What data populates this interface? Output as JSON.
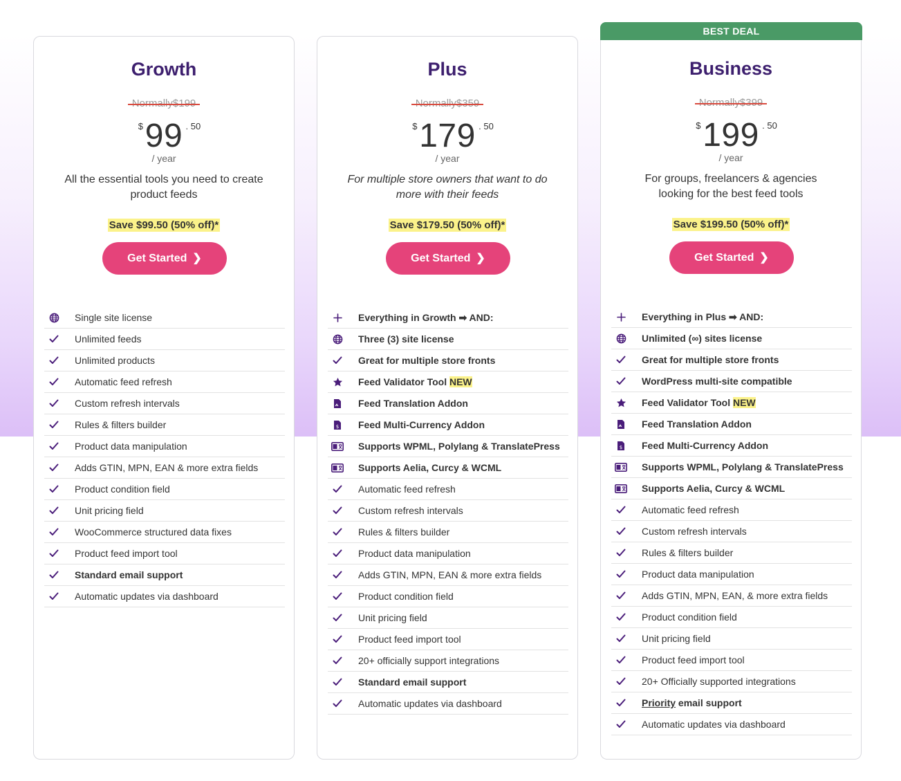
{
  "plans": [
    {
      "name": "Growth",
      "normal_price": "Normally$199",
      "currency": "$",
      "amount": "99",
      "cents": ". 50",
      "period": "/ year",
      "description": "All the essential tools you need to create product feeds",
      "savings": "Save $99.50 (50% off)*",
      "cta": "Get Started",
      "features": [
        {
          "icon": "globe-icon",
          "text": "Single site license",
          "bold": false
        },
        {
          "icon": "check-icon",
          "text": "Unlimited feeds",
          "bold": false
        },
        {
          "icon": "check-icon",
          "text": "Unlimited products",
          "bold": false
        },
        {
          "icon": "check-icon",
          "text": "Automatic feed refresh",
          "bold": false
        },
        {
          "icon": "check-icon",
          "text": "Custom refresh intervals",
          "bold": false
        },
        {
          "icon": "check-icon",
          "text": "Rules & filters builder",
          "bold": false
        },
        {
          "icon": "check-icon",
          "text": "Product data manipulation",
          "bold": false
        },
        {
          "icon": "check-icon",
          "text": "Adds GTIN, MPN, EAN & more extra fields",
          "bold": false
        },
        {
          "icon": "check-icon",
          "text": "Product condition field",
          "bold": false
        },
        {
          "icon": "check-icon",
          "text": "Unit pricing field",
          "bold": false
        },
        {
          "icon": "check-icon",
          "text": "WooCommerce structured data fixes",
          "bold": false
        },
        {
          "icon": "check-icon",
          "text": "Product feed import tool",
          "bold": false
        },
        {
          "icon": "check-icon",
          "text": "Standard email support",
          "bold": true
        },
        {
          "icon": "check-icon",
          "text": "Automatic updates via dashboard",
          "bold": false
        }
      ]
    },
    {
      "name": "Plus",
      "normal_price": "Normally$359",
      "currency": "$",
      "amount": "179",
      "cents": ". 50",
      "period": "/ year",
      "description": "For multiple store owners that want to do more with their feeds",
      "savings": "Save $179.50 (50% off)*",
      "cta": "Get Started",
      "features": [
        {
          "icon": "plus-icon",
          "text": "Everything in Growth ➡ AND:",
          "bold": true
        },
        {
          "icon": "globe-icon",
          "text": "Three (3) site license",
          "bold": true
        },
        {
          "icon": "check-icon",
          "text": "Great for multiple store fronts",
          "bold": true
        },
        {
          "icon": "star-icon",
          "text": "Feed Validator Tool ",
          "bold": true,
          "tag": "NEW"
        },
        {
          "icon": "file-translate-icon",
          "text": "Feed Translation Addon",
          "bold": true
        },
        {
          "icon": "file-currency-icon",
          "text": "Feed Multi-Currency Addon",
          "bold": true
        },
        {
          "icon": "language-card-icon",
          "text": "Supports WPML, Polylang & TranslatePress",
          "bold": true
        },
        {
          "icon": "language-card-icon",
          "text": "Supports Aelia, Curcy & WCML",
          "bold": true
        },
        {
          "icon": "check-icon",
          "text": "Automatic feed refresh",
          "bold": false
        },
        {
          "icon": "check-icon",
          "text": "Custom refresh intervals",
          "bold": false
        },
        {
          "icon": "check-icon",
          "text": "Rules & filters builder",
          "bold": false
        },
        {
          "icon": "check-icon",
          "text": "Product data manipulation",
          "bold": false
        },
        {
          "icon": "check-icon",
          "text": "Adds GTIN, MPN, EAN & more extra fields",
          "bold": false
        },
        {
          "icon": "check-icon",
          "text": "Product condition field",
          "bold": false
        },
        {
          "icon": "check-icon",
          "text": "Unit pricing field",
          "bold": false
        },
        {
          "icon": "check-icon",
          "text": "Product feed import tool",
          "bold": false
        },
        {
          "icon": "check-icon",
          "text": "20+ officially support integrations",
          "bold": false
        },
        {
          "icon": "check-icon",
          "text": "Standard email support",
          "bold": true
        },
        {
          "icon": "check-icon",
          "text": "Automatic updates via dashboard",
          "bold": false
        }
      ]
    },
    {
      "name": "Business",
      "badge": "BEST DEAL",
      "normal_price": "Normally$399",
      "currency": "$",
      "amount": "199",
      "cents": ". 50",
      "period": "/ year",
      "description": "For groups, freelancers & agencies looking for the best feed tools",
      "savings": "Save $199.50 (50% off)*",
      "cta": "Get Started",
      "features": [
        {
          "icon": "plus-icon",
          "text": "Everything in Plus ➡ AND:",
          "bold": true
        },
        {
          "icon": "globe-icon",
          "text": "Unlimited (∞) sites license",
          "bold": true
        },
        {
          "icon": "check-icon",
          "text": "Great for multiple store fronts",
          "bold": true
        },
        {
          "icon": "check-icon",
          "text": "WordPress multi-site compatible",
          "bold": true
        },
        {
          "icon": "star-icon",
          "text": "Feed Validator Tool ",
          "bold": true,
          "tag": "NEW"
        },
        {
          "icon": "file-translate-icon",
          "text": "Feed Translation Addon",
          "bold": true
        },
        {
          "icon": "file-currency-icon",
          "text": "Feed Multi-Currency Addon",
          "bold": true
        },
        {
          "icon": "language-card-icon",
          "text": "Supports WPML, Polylang & TranslatePress",
          "bold": true
        },
        {
          "icon": "language-card-icon",
          "text": "Supports Aelia, Curcy & WCML",
          "bold": true
        },
        {
          "icon": "check-icon",
          "text": "Automatic feed refresh",
          "bold": false
        },
        {
          "icon": "check-icon",
          "text": "Custom refresh intervals",
          "bold": false
        },
        {
          "icon": "check-icon",
          "text": "Rules & filters builder",
          "bold": false
        },
        {
          "icon": "check-icon",
          "text": "Product data manipulation",
          "bold": false
        },
        {
          "icon": "check-icon",
          "text": "Adds GTIN, MPN, EAN, & more extra fields",
          "bold": false
        },
        {
          "icon": "check-icon",
          "text": "Product condition field",
          "bold": false
        },
        {
          "icon": "check-icon",
          "text": "Unit pricing field",
          "bold": false
        },
        {
          "icon": "check-icon",
          "text": "Product feed import tool",
          "bold": false
        },
        {
          "icon": "check-icon",
          "text": "20+ Officially supported integrations",
          "bold": false
        },
        {
          "icon": "check-icon",
          "text": "Priority",
          "suffix": " email support",
          "bold": true,
          "underline": true
        },
        {
          "icon": "check-icon",
          "text": "Automatic updates via dashboard",
          "bold": false
        }
      ]
    }
  ],
  "colors": {
    "title": "#3d1f6e",
    "button": "#e5437a",
    "badge": "#4a9a66",
    "highlight": "#fbf28a",
    "strike": "#d94a3e",
    "icon": "#4a1d7a"
  }
}
